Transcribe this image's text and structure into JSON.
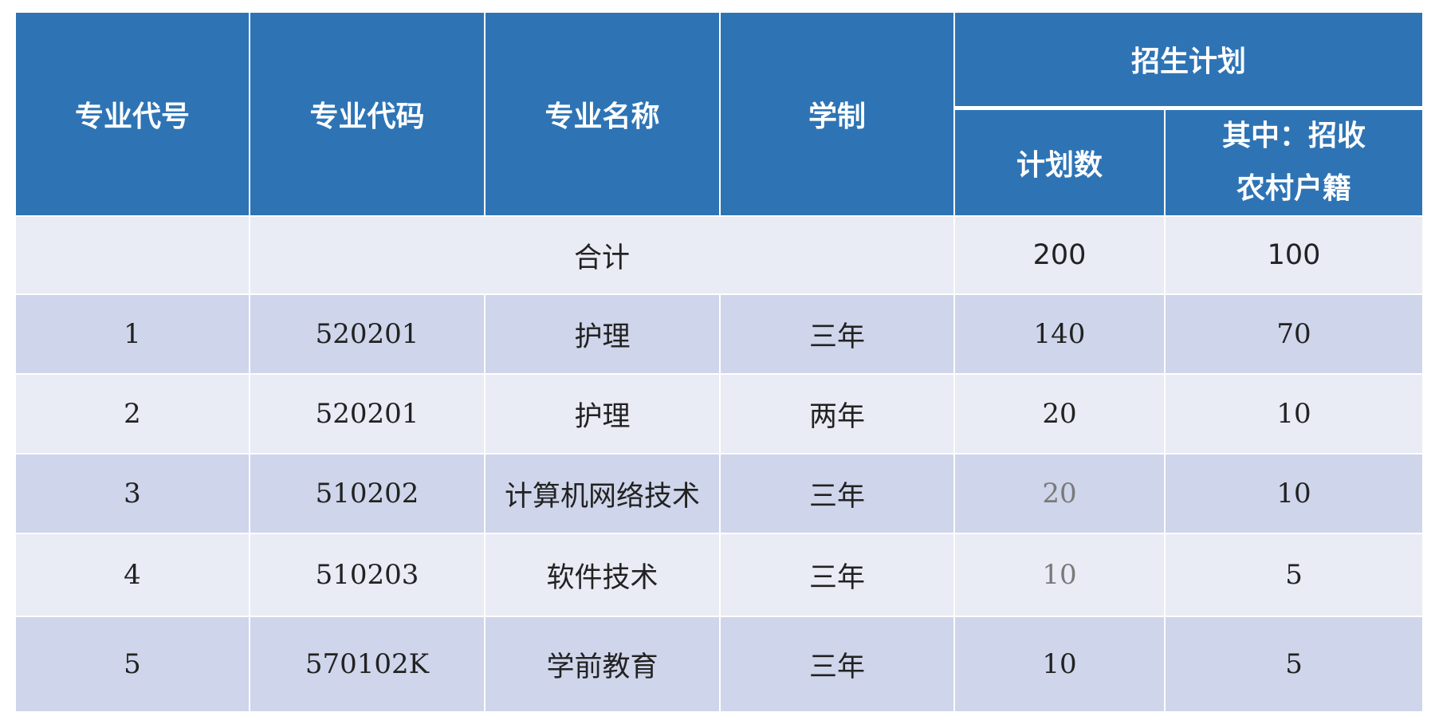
{
  "table": {
    "headers": {
      "major_no": "专业代号",
      "major_code": "专业代码",
      "major_name": "专业名称",
      "duration": "学制",
      "enrollment_plan": "招生计划",
      "plan_count": "计划数",
      "rural_line1": "其中：招收",
      "rural_line2": "农村户籍"
    },
    "total": {
      "label": "合计",
      "plan": "200",
      "rural": "100"
    },
    "rows": [
      {
        "no": "1",
        "code": "520201",
        "name": "护理",
        "duration": "三年",
        "plan": "140",
        "rural": "70"
      },
      {
        "no": "2",
        "code": "520201",
        "name": "护理",
        "duration": "两年",
        "plan": "20",
        "rural": "10"
      },
      {
        "no": "3",
        "code": "510202",
        "name": "计算机网络技术",
        "duration": "三年",
        "plan": "20",
        "rural": "10"
      },
      {
        "no": "4",
        "code": "510203",
        "name": "软件技术",
        "duration": "三年",
        "plan": "10",
        "rural": "5"
      },
      {
        "no": "5",
        "code": "570102K",
        "name": "学前教育",
        "duration": "三年",
        "plan": "10",
        "rural": "5"
      }
    ]
  },
  "colors": {
    "header_bg": "#2e74b5",
    "row_light": "#e9ebf5",
    "row_dark": "#cfd5ea"
  }
}
